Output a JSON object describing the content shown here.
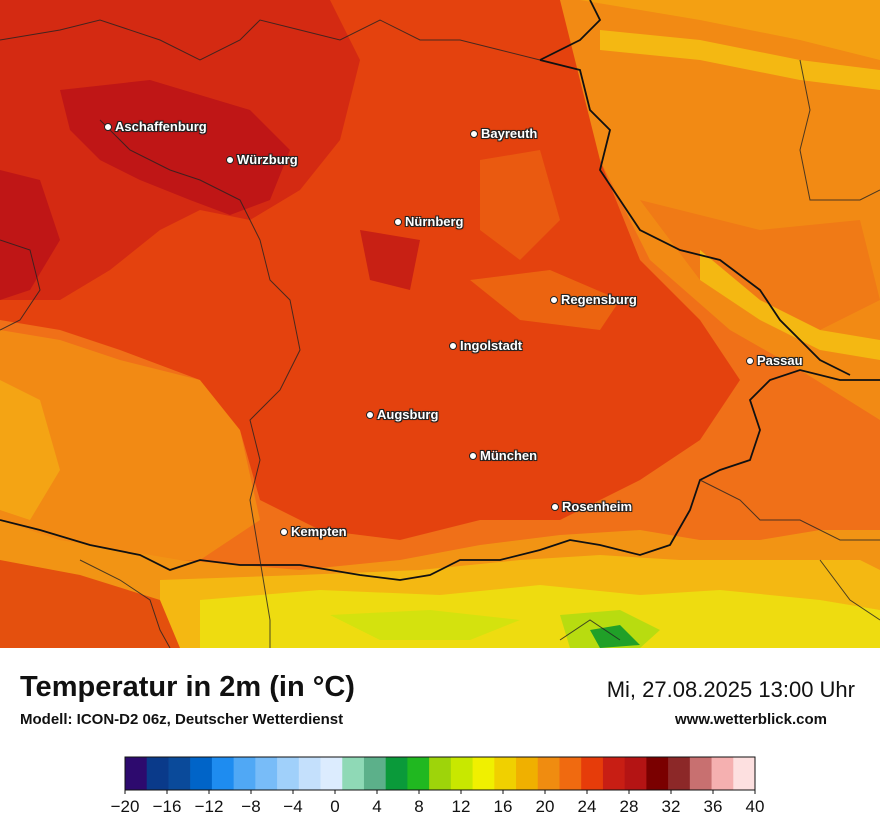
{
  "header": {
    "title": "Temperatur in 2m (in °C)",
    "model": "Modell: ICON-D2 06z, Deutscher Wetterdienst",
    "datetime": "Mi, 27.08.2025 13:00 Uhr",
    "website": "www.wetterblick.com"
  },
  "cities": [
    {
      "name": "Aschaffenburg"
    },
    {
      "name": "Würzburg"
    },
    {
      "name": "Bayreuth"
    },
    {
      "name": "Nürnberg"
    },
    {
      "name": "Regensburg"
    },
    {
      "name": "Ingolstadt"
    },
    {
      "name": "Passau"
    },
    {
      "name": "Augsburg"
    },
    {
      "name": "München"
    },
    {
      "name": "Rosenheim"
    },
    {
      "name": "Kempten"
    }
  ],
  "legend": {
    "ticks": [
      "−20",
      "−16",
      "−12",
      "−8",
      "−4",
      "0",
      "4",
      "8",
      "12",
      "16",
      "20",
      "24",
      "28",
      "32",
      "36",
      "40"
    ],
    "colors": [
      "#2d0a6e",
      "#0a3a8a",
      "#0a4a9a",
      "#0064c8",
      "#1e8cf0",
      "#50a8f5",
      "#78bcf8",
      "#a0d0fa",
      "#c4e0fc",
      "#dcecfe",
      "#8fd9b6",
      "#5cb08a",
      "#0a9a3a",
      "#20b820",
      "#9ed40a",
      "#c8e800",
      "#f0f000",
      "#f0d000",
      "#f0b000",
      "#f08c10",
      "#f06a10",
      "#e63c0a",
      "#c81e14",
      "#b41414",
      "#7a0000",
      "#8c2828",
      "#c87070",
      "#f5b0b0",
      "#fde0e0"
    ]
  },
  "palette": {
    "hot": "#c41818",
    "warm": "#e03c0c",
    "mid": "#f06a10",
    "mild": "#f28c14",
    "cool": "#f5b010",
    "alpine": "#e8e010",
    "alpine_cool": "#b8dc10",
    "border": "#111111"
  }
}
